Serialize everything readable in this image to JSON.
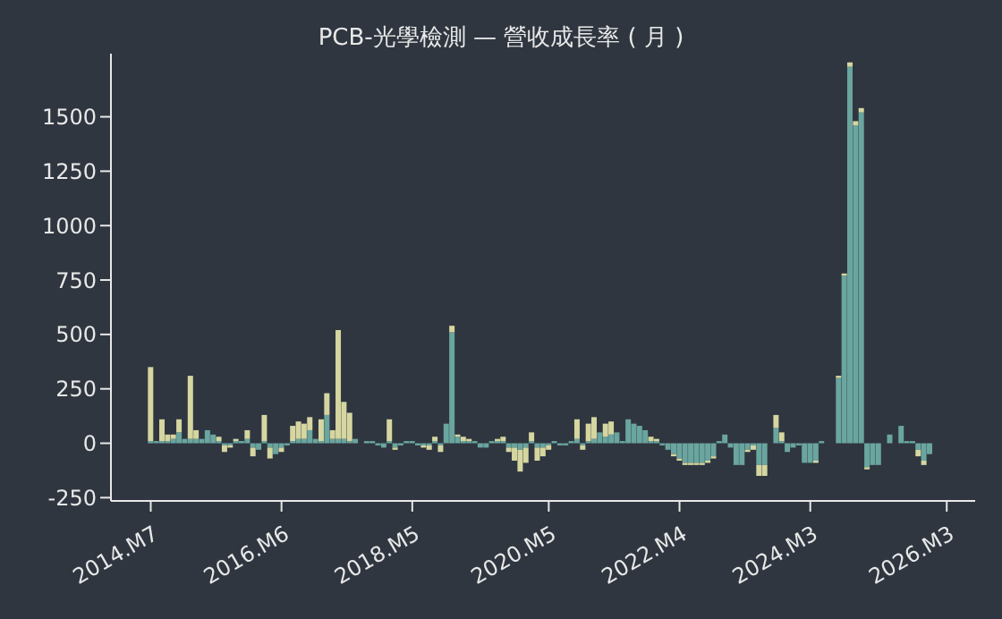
{
  "chart_data": {
    "type": "bar",
    "title": "PCB-光學檢測 — 營收成長率 ( 月 )",
    "x": [
      "2014-07",
      "2014-08",
      "2014-09",
      "2014-10",
      "2014-11",
      "2014-12",
      "2015-01",
      "2015-02",
      "2015-03",
      "2015-04",
      "2015-05",
      "2015-06",
      "2015-07",
      "2015-08",
      "2015-09",
      "2015-10",
      "2015-11",
      "2015-12",
      "2016-01",
      "2016-02",
      "2016-03",
      "2016-04",
      "2016-05",
      "2016-06",
      "2016-07",
      "2016-08",
      "2016-09",
      "2016-10",
      "2016-11",
      "2016-12",
      "2017-01",
      "2017-02",
      "2017-03",
      "2017-04",
      "2017-05",
      "2017-06",
      "2017-07",
      "2017-08",
      "2017-09",
      "2017-10",
      "2017-11",
      "2017-12",
      "2018-01",
      "2018-02",
      "2018-03",
      "2018-04",
      "2018-05",
      "2018-06",
      "2018-07",
      "2018-08",
      "2018-09",
      "2018-10",
      "2018-11",
      "2018-12",
      "2019-01",
      "2019-02",
      "2019-03",
      "2019-04",
      "2019-05",
      "2019-06",
      "2019-07",
      "2019-08",
      "2019-09",
      "2019-10",
      "2019-11",
      "2019-12",
      "2020-01",
      "2020-02",
      "2020-03",
      "2020-04",
      "2020-05",
      "2020-06",
      "2020-07",
      "2020-08",
      "2020-09",
      "2020-10",
      "2020-11",
      "2020-12",
      "2021-01",
      "2021-02",
      "2021-03",
      "2021-04",
      "2021-05",
      "2021-06",
      "2021-07",
      "2021-08",
      "2021-09",
      "2021-10",
      "2021-11",
      "2021-12",
      "2022-01",
      "2022-02",
      "2022-03",
      "2022-04",
      "2022-05",
      "2022-06",
      "2022-07",
      "2022-08",
      "2022-09",
      "2022-10",
      "2022-11",
      "2022-12",
      "2023-01",
      "2023-02",
      "2023-03",
      "2023-04",
      "2023-05",
      "2023-06",
      "2023-07",
      "2023-08",
      "2023-09",
      "2023-10",
      "2023-11",
      "2023-12",
      "2024-01",
      "2024-02",
      "2024-03",
      "2024-04",
      "2024-05",
      "2024-06",
      "2024-07",
      "2024-08",
      "2024-09",
      "2024-10",
      "2024-11",
      "2024-12",
      "2025-01",
      "2025-02",
      "2025-03",
      "2025-04",
      "2025-05",
      "2025-06",
      "2025-07",
      "2025-08",
      "2025-09",
      "2025-10",
      "2025-11",
      "2025-12"
    ],
    "series": [
      {
        "color": "#6aa59f",
        "values": [
          10,
          10,
          10,
          10,
          20,
          50,
          20,
          20,
          20,
          20,
          60,
          40,
          10,
          -10,
          -10,
          10,
          10,
          20,
          -20,
          -30,
          10,
          -20,
          -50,
          -20,
          -10,
          10,
          20,
          20,
          60,
          20,
          10,
          130,
          20,
          20,
          20,
          10,
          20,
          0,
          10,
          10,
          -10,
          -20,
          10,
          -20,
          -10,
          10,
          10,
          -10,
          -10,
          -10,
          10,
          -10,
          90,
          510,
          30,
          10,
          10,
          10,
          -20,
          -20,
          10,
          10,
          10,
          -20,
          -20,
          -30,
          -20,
          10,
          -20,
          -20,
          -10,
          10,
          -10,
          -10,
          10,
          20,
          -10,
          10,
          20,
          50,
          30,
          40,
          50,
          10,
          110,
          90,
          80,
          60,
          10,
          10,
          -10,
          -30,
          -50,
          -70,
          -90,
          -90,
          -90,
          -90,
          -80,
          -60,
          10,
          40,
          -20,
          -100,
          -100,
          -30,
          -10,
          -100,
          -100,
          0,
          70,
          10,
          -40,
          -20,
          -10,
          -90,
          -90,
          -80,
          10,
          0,
          0,
          300,
          770,
          1730,
          1460,
          1520,
          -110,
          -100,
          -100,
          0,
          40,
          0,
          80,
          10,
          10,
          -30,
          -80,
          -50
        ]
      },
      {
        "color": "#d5d6a0",
        "values": [
          340,
          0,
          100,
          30,
          20,
          60,
          0,
          290,
          40,
          0,
          0,
          0,
          20,
          -30,
          -10,
          10,
          0,
          40,
          -40,
          0,
          120,
          -50,
          0,
          -20,
          0,
          70,
          80,
          70,
          60,
          0,
          100,
          100,
          40,
          500,
          170,
          130,
          0,
          0,
          0,
          0,
          0,
          0,
          100,
          -10,
          0,
          0,
          0,
          0,
          -10,
          -20,
          20,
          -30,
          0,
          30,
          10,
          20,
          10,
          0,
          0,
          0,
          0,
          10,
          20,
          -20,
          -60,
          -100,
          -70,
          40,
          -60,
          -40,
          -20,
          0,
          0,
          0,
          0,
          90,
          -20,
          80,
          100,
          0,
          60,
          60,
          0,
          0,
          0,
          0,
          0,
          0,
          20,
          10,
          0,
          0,
          -10,
          -10,
          -10,
          -10,
          -10,
          -10,
          -10,
          -10,
          0,
          0,
          0,
          0,
          0,
          -10,
          -20,
          -50,
          -50,
          0,
          60,
          40,
          0,
          0,
          0,
          0,
          0,
          -10,
          0,
          0,
          0,
          10,
          10,
          20,
          20,
          20,
          -10,
          0,
          0,
          0,
          0,
          0,
          0,
          0,
          0,
          -30,
          -20,
          0
        ]
      }
    ],
    "stacked": true,
    "xlim": [
      "2013-12",
      "2026-08"
    ],
    "xticks": [
      {
        "value": "2014-07",
        "label": "2014.M7"
      },
      {
        "value": "2016-06",
        "label": "2016.M6"
      },
      {
        "value": "2018-05",
        "label": "2018.M5"
      },
      {
        "value": "2020-05",
        "label": "2020.M5"
      },
      {
        "value": "2022-04",
        "label": "2022.M4"
      },
      {
        "value": "2024-03",
        "label": "2024.M3"
      },
      {
        "value": "2026-03",
        "label": "2026.M3"
      }
    ],
    "ylim": [
      -265,
      1790
    ],
    "yticks": [
      -250,
      0,
      250,
      500,
      750,
      1000,
      1250,
      1500
    ],
    "grid": false,
    "legend": false
  }
}
